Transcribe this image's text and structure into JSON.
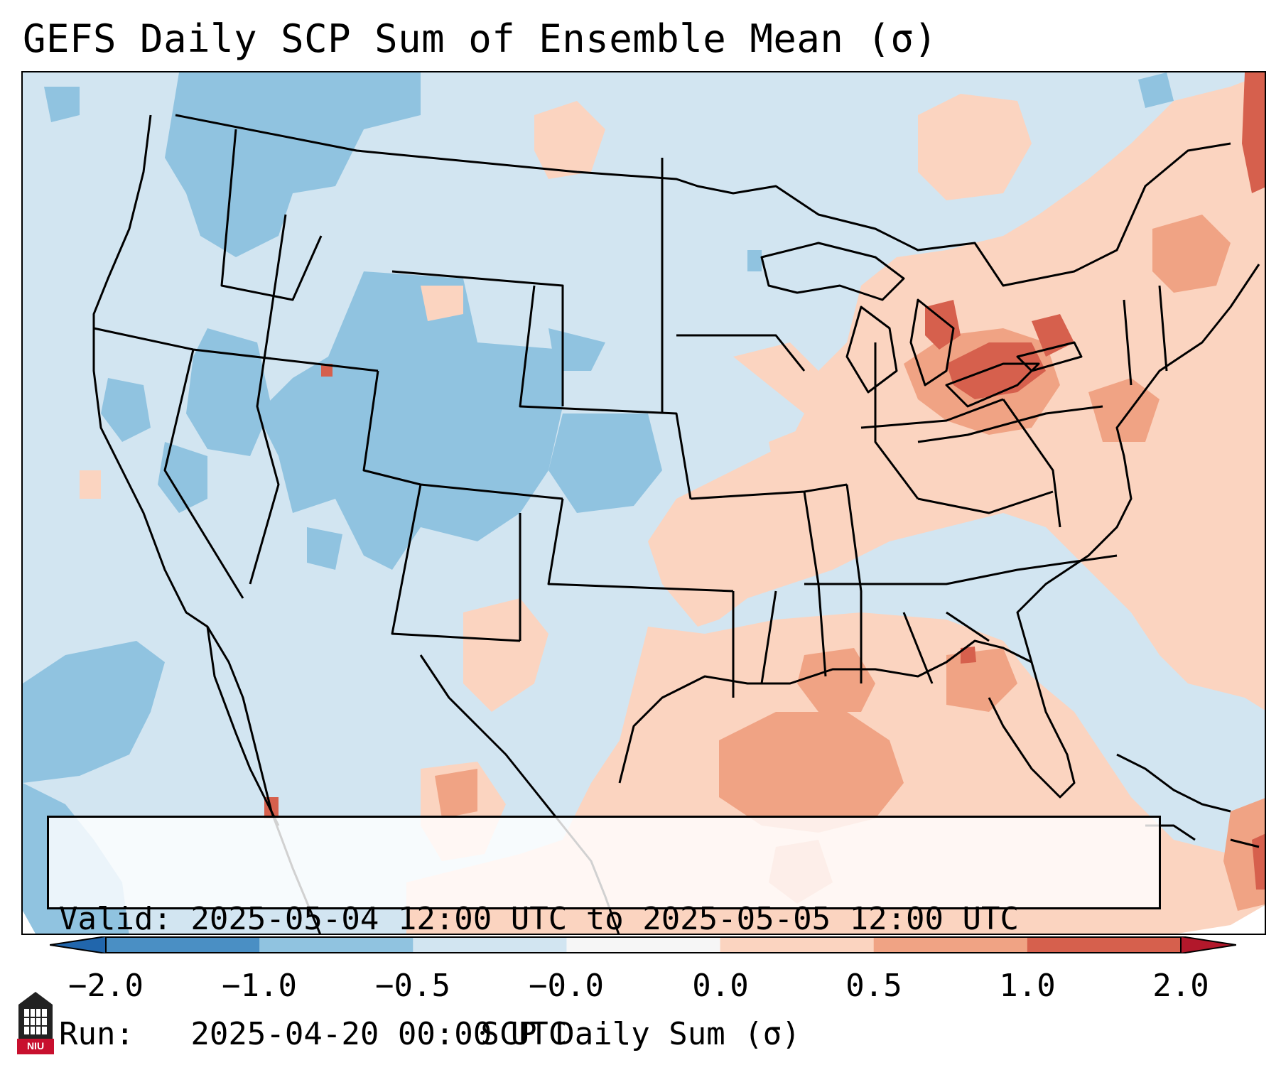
{
  "title": "GEFS Daily SCP Sum of Ensemble Mean (σ)",
  "info": {
    "valid_line": "Valid: 2025-05-04 12:00 UTC to 2025-05-05 12:00 UTC",
    "run_line": "Run:   2025-04-20 00:00 UTC"
  },
  "colorbar": {
    "label": "SCP Daily Sum (σ)",
    "ticks": [
      "−2.0",
      "−1.0",
      "−0.5",
      "−0.0",
      "0.0",
      "0.5",
      "1.0",
      "2.0"
    ],
    "bin_colors": [
      "#4a8fc4",
      "#90c3e0",
      "#d2e5f1",
      "#f6f6f6",
      "#fbd4c0",
      "#f0a384",
      "#d6604d"
    ],
    "under_color": "#2166ac",
    "over_color": "#b2182b"
  },
  "logo": {
    "text": "NIU"
  }
}
